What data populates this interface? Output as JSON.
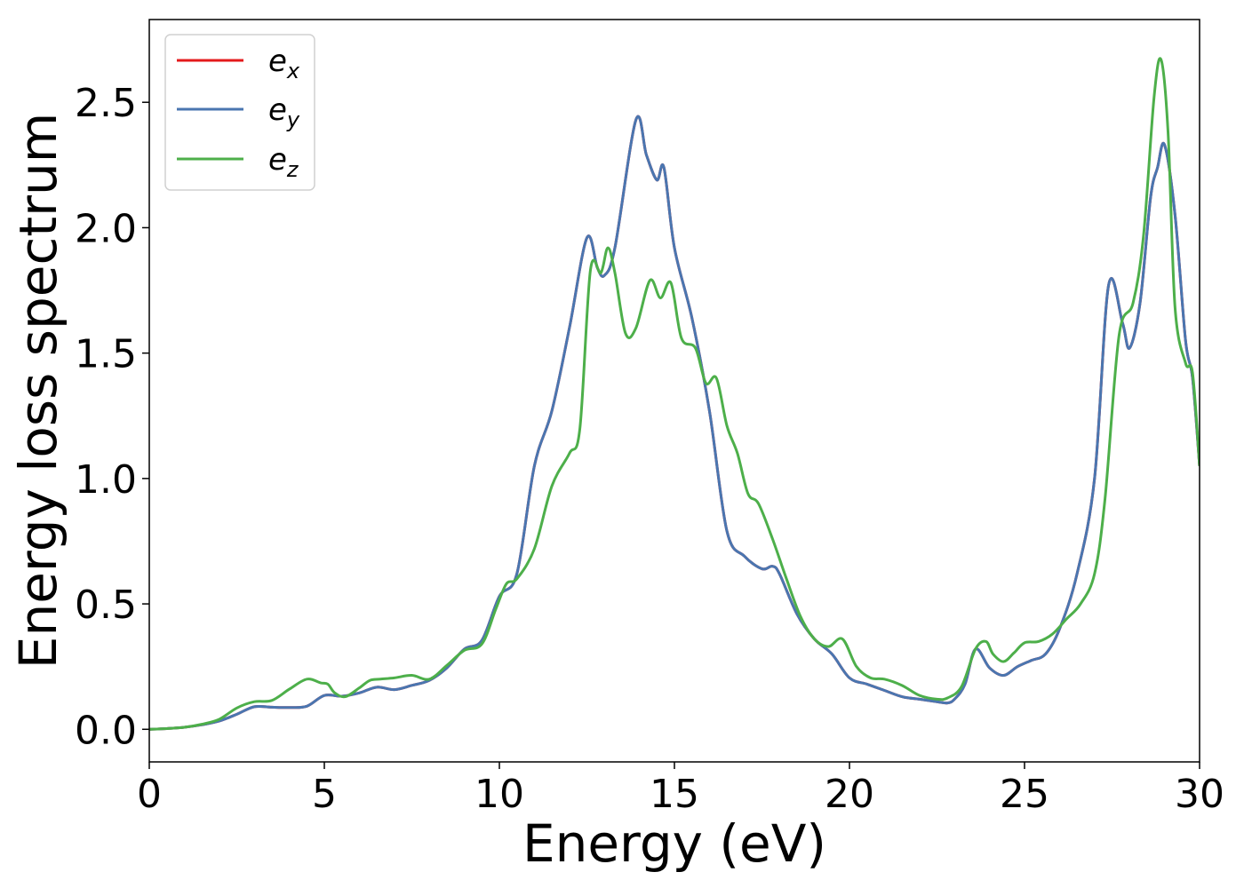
{
  "chart_data": {
    "type": "line",
    "xlabel": "Energy (eV)",
    "ylabel": "Energy loss spectrum",
    "xlim": [
      0,
      30
    ],
    "ylim": [
      -0.13,
      2.83
    ],
    "xticks": [
      0,
      5,
      10,
      15,
      20,
      25,
      30
    ],
    "yticks": [
      0.0,
      0.5,
      1.0,
      1.5,
      2.0,
      2.5
    ],
    "xtick_labels": [
      "0",
      "5",
      "10",
      "15",
      "20",
      "25",
      "30"
    ],
    "ytick_labels": [
      "0.0",
      "0.5",
      "1.0",
      "1.5",
      "2.0",
      "2.5"
    ],
    "grid": false,
    "legend_position": "top-left",
    "series": [
      {
        "name": "e_x",
        "label_base": "e",
        "label_sub": "x",
        "color": "#e41a1c",
        "x": [
          0,
          0.5,
          1,
          1.5,
          2,
          2.5,
          3,
          3.5,
          4,
          4.5,
          5,
          5.5,
          6,
          6.5,
          7,
          7.5,
          8,
          8.5,
          9,
          9.5,
          10,
          10.5,
          11,
          11.5,
          12,
          12.5,
          12.8,
          13,
          13.3,
          13.9,
          14.2,
          14.5,
          14.7,
          15,
          15.5,
          16,
          16.5,
          17,
          17.5,
          17.8,
          18,
          18.5,
          19,
          19.5,
          20,
          20.5,
          21,
          21.5,
          22,
          22.5,
          22.8,
          23,
          23.3,
          23.6,
          24,
          24.4,
          24.8,
          25.2,
          25.6,
          26,
          26.5,
          27,
          27.4,
          27.8,
          28,
          28.3,
          28.6,
          28.8,
          29,
          29.3,
          29.6,
          29.8,
          30
        ],
        "y": [
          0,
          0.003,
          0.008,
          0.018,
          0.033,
          0.06,
          0.09,
          0.088,
          0.087,
          0.092,
          0.135,
          0.132,
          0.145,
          0.168,
          0.158,
          0.175,
          0.195,
          0.245,
          0.32,
          0.355,
          0.53,
          0.62,
          1.05,
          1.27,
          1.6,
          1.96,
          1.84,
          1.81,
          1.92,
          2.43,
          2.29,
          2.19,
          2.24,
          1.92,
          1.64,
          1.27,
          0.79,
          0.69,
          0.64,
          0.65,
          0.62,
          0.46,
          0.36,
          0.3,
          0.205,
          0.18,
          0.155,
          0.13,
          0.12,
          0.11,
          0.105,
          0.12,
          0.18,
          0.32,
          0.245,
          0.215,
          0.25,
          0.275,
          0.3,
          0.4,
          0.62,
          1.0,
          1.77,
          1.62,
          1.52,
          1.7,
          2.12,
          2.24,
          2.33,
          2.05,
          1.55,
          1.4,
          1.05
        ]
      },
      {
        "name": "e_y",
        "label_base": "e",
        "label_sub": "y",
        "color": "#4a76b0",
        "x": [
          0,
          0.5,
          1,
          1.5,
          2,
          2.5,
          3,
          3.5,
          4,
          4.5,
          5,
          5.5,
          6,
          6.5,
          7,
          7.5,
          8,
          8.5,
          9,
          9.5,
          10,
          10.5,
          11,
          11.5,
          12,
          12.5,
          12.8,
          13,
          13.3,
          13.9,
          14.2,
          14.5,
          14.7,
          15,
          15.5,
          16,
          16.5,
          17,
          17.5,
          17.8,
          18,
          18.5,
          19,
          19.5,
          20,
          20.5,
          21,
          21.5,
          22,
          22.5,
          22.8,
          23,
          23.3,
          23.6,
          24,
          24.4,
          24.8,
          25.2,
          25.6,
          26,
          26.5,
          27,
          27.4,
          27.8,
          28,
          28.3,
          28.6,
          28.8,
          29,
          29.3,
          29.6,
          29.8,
          30
        ],
        "y": [
          0,
          0.003,
          0.008,
          0.018,
          0.033,
          0.06,
          0.09,
          0.088,
          0.087,
          0.092,
          0.135,
          0.132,
          0.145,
          0.168,
          0.158,
          0.175,
          0.195,
          0.245,
          0.32,
          0.355,
          0.53,
          0.62,
          1.05,
          1.27,
          1.6,
          1.96,
          1.84,
          1.81,
          1.92,
          2.43,
          2.29,
          2.19,
          2.24,
          1.92,
          1.64,
          1.27,
          0.79,
          0.69,
          0.64,
          0.65,
          0.62,
          0.46,
          0.36,
          0.3,
          0.205,
          0.18,
          0.155,
          0.13,
          0.12,
          0.11,
          0.105,
          0.12,
          0.18,
          0.32,
          0.245,
          0.215,
          0.25,
          0.275,
          0.3,
          0.4,
          0.62,
          1.0,
          1.77,
          1.62,
          1.52,
          1.7,
          2.12,
          2.24,
          2.33,
          2.05,
          1.55,
          1.4,
          1.05
        ]
      },
      {
        "name": "e_z",
        "label_base": "e",
        "label_sub": "z",
        "color": "#4daf4a",
        "x": [
          0,
          0.5,
          1,
          1.5,
          2,
          2.5,
          3,
          3.5,
          4,
          4.5,
          4.9,
          5.1,
          5.3,
          5.6,
          6,
          6.3,
          6.6,
          7,
          7.5,
          8,
          8.5,
          9,
          9.5,
          9.9,
          10.2,
          10.5,
          11,
          11.5,
          12,
          12.3,
          12.6,
          12.9,
          13.1,
          13.3,
          13.6,
          13.9,
          14.3,
          14.6,
          14.9,
          15.2,
          15.6,
          15.9,
          16.2,
          16.5,
          16.8,
          17.1,
          17.4,
          17.8,
          18.2,
          18.6,
          19,
          19.4,
          19.8,
          20.2,
          20.6,
          21,
          21.5,
          22,
          22.5,
          22.8,
          23.2,
          23.6,
          23.9,
          24.1,
          24.4,
          24.7,
          25,
          25.4,
          25.8,
          26.2,
          26.6,
          27,
          27.3,
          27.7,
          28.1,
          28.4,
          28.7,
          28.9,
          29.1,
          29.3,
          29.6,
          29.8,
          30
        ],
        "y": [
          0,
          0.003,
          0.008,
          0.02,
          0.04,
          0.085,
          0.11,
          0.115,
          0.16,
          0.2,
          0.185,
          0.18,
          0.145,
          0.13,
          0.165,
          0.195,
          0.2,
          0.205,
          0.215,
          0.2,
          0.255,
          0.315,
          0.34,
          0.48,
          0.58,
          0.6,
          0.72,
          0.97,
          1.1,
          1.2,
          1.83,
          1.82,
          1.92,
          1.82,
          1.58,
          1.6,
          1.79,
          1.72,
          1.78,
          1.56,
          1.52,
          1.38,
          1.4,
          1.21,
          1.1,
          0.94,
          0.9,
          0.76,
          0.6,
          0.45,
          0.36,
          0.33,
          0.36,
          0.25,
          0.205,
          0.2,
          0.175,
          0.135,
          0.12,
          0.125,
          0.17,
          0.32,
          0.35,
          0.3,
          0.27,
          0.305,
          0.345,
          0.35,
          0.38,
          0.44,
          0.5,
          0.62,
          0.92,
          1.57,
          1.7,
          1.97,
          2.52,
          2.67,
          2.38,
          1.68,
          1.46,
          1.42,
          1.05
        ]
      }
    ]
  }
}
